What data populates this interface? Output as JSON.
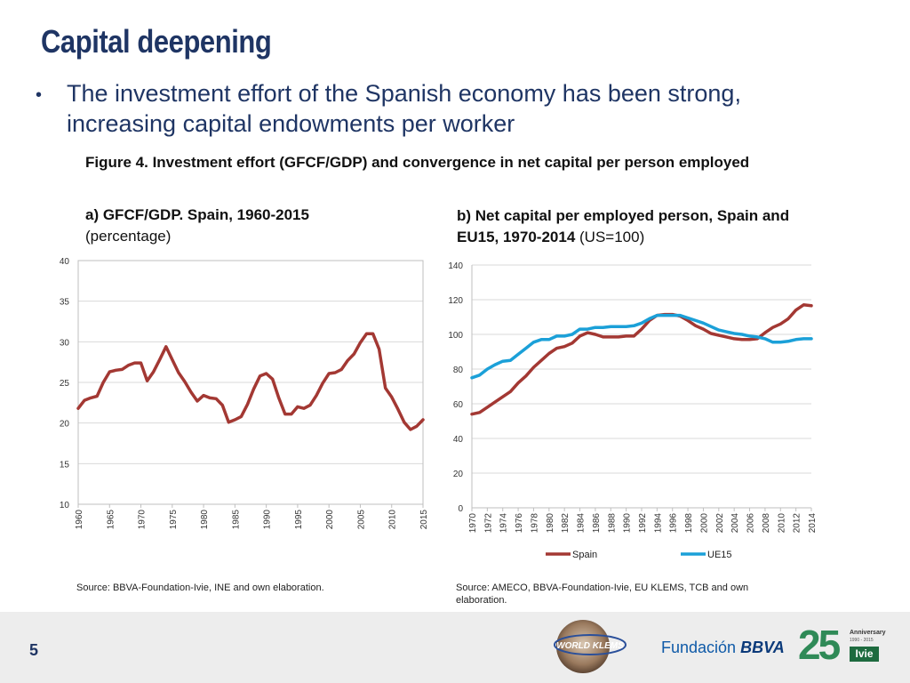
{
  "slide": {
    "title": "Capital deepening",
    "bullet": "The investment effort of the Spanish economy has been strong, increasing capital endowments per worker",
    "figure_title": "Figure 4. Investment effort (GFCF/GDP) and convergence in net capital per person employed",
    "page_number": "5"
  },
  "panel_a": {
    "heading": "a) GFCF/GDP. Spain, 1960-2015",
    "subheading": "(percentage)",
    "source": "Source: BBVA-Foundation-Ivie, INE and own elaboration."
  },
  "panel_b": {
    "heading_bold": "b) Net capital per employed person, Spain and EU15, 1970-2014",
    "heading_normal": " (US=100)",
    "source": "Source: AMECO, BBVA-Foundation-Ivie, EU KLEMS, TCB and own elaboration."
  },
  "logos": {
    "world_klems": "WORLD KLEMS",
    "fundacion": "Fundación",
    "bbva": "BBVA",
    "anniversary_number": "25",
    "anniversary_label": "Anniversary",
    "anniversary_years": "1990 - 2015",
    "ivie": "Ivie"
  },
  "colors": {
    "title": "#1f3564",
    "spain": "#a33833",
    "eu15": "#1ba0d8",
    "grid": "#d9d9d9"
  },
  "chart_data": [
    {
      "id": "gfcf",
      "type": "line",
      "title": "a) GFCF/GDP. Spain, 1960-2015",
      "ylabel": "percentage",
      "xlabel": "",
      "ylim": [
        10,
        40
      ],
      "yticks": [
        10,
        15,
        20,
        25,
        30,
        35,
        40
      ],
      "xticks": [
        1960,
        1965,
        1970,
        1975,
        1980,
        1985,
        1990,
        1995,
        2000,
        2005,
        2010,
        2015
      ],
      "x": [
        1960,
        1961,
        1962,
        1963,
        1964,
        1965,
        1966,
        1967,
        1968,
        1969,
        1970,
        1971,
        1972,
        1973,
        1974,
        1975,
        1976,
        1977,
        1978,
        1979,
        1980,
        1981,
        1982,
        1983,
        1984,
        1985,
        1986,
        1987,
        1988,
        1989,
        1990,
        1991,
        1992,
        1993,
        1994,
        1995,
        1996,
        1997,
        1998,
        1999,
        2000,
        2001,
        2002,
        2003,
        2004,
        2005,
        2006,
        2007,
        2008,
        2009,
        2010,
        2011,
        2012,
        2013,
        2014,
        2015
      ],
      "series": [
        {
          "name": "GFCF/GDP Spain",
          "color": "#a33833",
          "values": [
            21.8,
            22.8,
            23.1,
            23.3,
            25.0,
            26.3,
            26.5,
            26.6,
            27.1,
            27.4,
            27.4,
            25.2,
            26.3,
            27.8,
            29.4,
            27.8,
            26.2,
            25.1,
            23.8,
            22.7,
            23.4,
            23.1,
            23.0,
            22.2,
            20.1,
            20.4,
            20.8,
            22.3,
            24.2,
            25.8,
            26.1,
            25.4,
            23.1,
            21.1,
            21.1,
            22.0,
            21.8,
            22.2,
            23.4,
            24.9,
            26.1,
            26.2,
            26.6,
            27.7,
            28.5,
            29.9,
            31.0,
            31.0,
            29.1,
            24.3,
            23.2,
            21.7,
            20.1,
            19.2,
            19.6,
            20.4
          ]
        }
      ]
    },
    {
      "id": "capital",
      "type": "line",
      "title": "b) Net capital per employed person, Spain and EU15, 1970-2014 (US=100)",
      "ylabel": "US=100",
      "xlabel": "",
      "ylim": [
        0,
        140
      ],
      "yticks": [
        0,
        20,
        40,
        60,
        80,
        100,
        120,
        140
      ],
      "xticks": [
        1970,
        1972,
        1974,
        1976,
        1978,
        1980,
        1982,
        1984,
        1986,
        1988,
        1990,
        1992,
        1994,
        1996,
        1998,
        2000,
        2002,
        2004,
        2006,
        2008,
        2010,
        2012,
        2014
      ],
      "x": [
        1970,
        1971,
        1972,
        1973,
        1974,
        1975,
        1976,
        1977,
        1978,
        1979,
        1980,
        1981,
        1982,
        1983,
        1984,
        1985,
        1986,
        1987,
        1988,
        1989,
        1990,
        1991,
        1992,
        1993,
        1994,
        1995,
        1996,
        1997,
        1998,
        1999,
        2000,
        2001,
        2002,
        2003,
        2004,
        2005,
        2006,
        2007,
        2008,
        2009,
        2010,
        2011,
        2012,
        2013,
        2014
      ],
      "legend": [
        "Spain",
        "UE15"
      ],
      "legend_position": "bottom",
      "series": [
        {
          "name": "Spain",
          "color": "#a33833",
          "values": [
            54,
            55,
            58,
            61,
            64,
            67,
            72,
            76,
            81,
            85,
            89,
            92,
            93,
            95,
            99,
            101,
            100,
            98.5,
            98.5,
            98.5,
            99,
            99,
            103,
            108,
            111,
            111.5,
            111.5,
            110.5,
            108,
            105,
            103,
            100.5,
            99.5,
            98.5,
            97.5,
            97,
            97,
            97.5,
            101,
            104,
            106,
            109,
            114,
            117,
            116.5
          ]
        },
        {
          "name": "UE15",
          "color": "#1ba0d8",
          "values": [
            75,
            76.5,
            80,
            82.5,
            84.5,
            85,
            88.5,
            92,
            95.5,
            97,
            97,
            99,
            99,
            100,
            103,
            103,
            104,
            104,
            104.5,
            104.5,
            104.5,
            105,
            106.5,
            109,
            111,
            111,
            111,
            111,
            109.5,
            108,
            106.5,
            104.5,
            102.5,
            101.5,
            100.5,
            100,
            99,
            98.5,
            97.5,
            95.5,
            95.5,
            96,
            97,
            97.5,
            97.5
          ]
        }
      ]
    }
  ]
}
